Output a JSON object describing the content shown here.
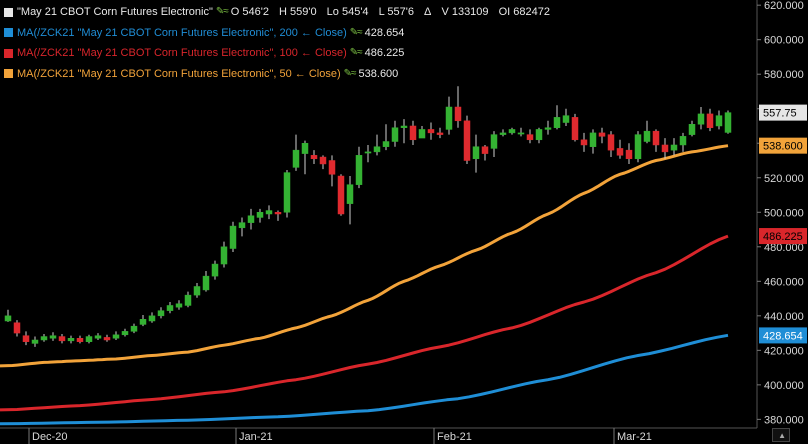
{
  "legend": {
    "main": {
      "title": "\"May 21 CBOT Corn Futures Electronic\"",
      "open": "O 546'2",
      "high": "H 559'0",
      "low": "Lo 545'4",
      "last": "L 557'6",
      "delta": "Δ",
      "volume": "V 133109",
      "oi": "OI 682472",
      "color": "#e6e6e6"
    },
    "ma200": {
      "label": "MA(/ZCK21 \"May 21 CBOT Corn Futures Electronic\", 200 ← Close)",
      "value": "428.654",
      "color": "#1f8ed6"
    },
    "ma100": {
      "label": "MA(/ZCK21 \"May 21 CBOT Corn Futures Electronic\", 100 ← Close)",
      "value": "486.225",
      "color": "#d9262b"
    },
    "ma50": {
      "label": "MA(/ZCK21 \"May 21 CBOT Corn Futures Electronic\", 50 ← Close)",
      "value": "538.600",
      "color": "#f2a33a"
    },
    "pen_icon": "pencil-icon"
  },
  "colors": {
    "up": "#34b233",
    "down": "#e02a2f",
    "background": "#000000",
    "axis_text": "#d8d8d8"
  },
  "chart_data": {
    "type": "candlestick",
    "ylim": [
      375,
      623
    ],
    "y_ticks": [
      "380.000",
      "400.000",
      "420.000",
      "440.000",
      "460.000",
      "480.000",
      "500.000",
      "520.000",
      "540.000",
      "560.000",
      "580.000",
      "600.000",
      "620.000"
    ],
    "y_tick_values": [
      380,
      400,
      420,
      440,
      460,
      480,
      500,
      520,
      540,
      560,
      580,
      600,
      620
    ],
    "x_labels": [
      {
        "label": "Dec-20",
        "index": 3
      },
      {
        "label": "Jan-21",
        "index": 26
      },
      {
        "label": "Feb-21",
        "index": 48
      },
      {
        "label": "Mar-21",
        "index": 68
      }
    ],
    "last_price_badges": [
      {
        "label": "557.75",
        "value": 557.75,
        "bg": "#e6e6e6",
        "fg": "#000000"
      },
      {
        "label": "538.600",
        "value": 538.6,
        "bg": "#f2a33a",
        "fg": "#000000"
      },
      {
        "label": "486.225",
        "value": 486.225,
        "bg": "#d9262b",
        "fg": "#000000"
      },
      {
        "label": "428.654",
        "value": 428.654,
        "bg": "#1f8ed6",
        "fg": "#ffffff"
      }
    ],
    "candles": [
      [
        437.0,
        440.0,
        443.5,
        436.5
      ],
      [
        436.0,
        430.0,
        437.5,
        428.0
      ],
      [
        428.5,
        425.0,
        431.0,
        423.0
      ],
      [
        424.0,
        426.0,
        428.0,
        422.0
      ],
      [
        426.0,
        428.0,
        429.5,
        425.0
      ],
      [
        427.0,
        428.5,
        430.5,
        425.5
      ],
      [
        428.0,
        425.5,
        429.5,
        424.0
      ],
      [
        425.5,
        427.0,
        428.5,
        424.0
      ],
      [
        427.0,
        425.0,
        428.5,
        424.0
      ],
      [
        425.0,
        428.0,
        429.0,
        424.0
      ],
      [
        427.0,
        428.5,
        430.0,
        426.0
      ],
      [
        427.5,
        426.0,
        429.0,
        425.0
      ],
      [
        427.0,
        429.0,
        431.0,
        426.0
      ],
      [
        429.0,
        431.0,
        432.5,
        428.0
      ],
      [
        431.0,
        434.0,
        435.5,
        430.0
      ],
      [
        435.0,
        438.0,
        440.5,
        434.0
      ],
      [
        437.0,
        440.0,
        442.0,
        436.0
      ],
      [
        440.0,
        443.0,
        445.0,
        438.5
      ],
      [
        443.0,
        446.0,
        448.0,
        441.5
      ],
      [
        445.0,
        447.0,
        449.0,
        443.5
      ],
      [
        446.0,
        452.0,
        454.0,
        445.0
      ],
      [
        452.0,
        457.0,
        459.0,
        450.5
      ],
      [
        455.0,
        463.0,
        466.0,
        454.0
      ],
      [
        463.0,
        470.0,
        472.0,
        461.0
      ],
      [
        470.0,
        480.0,
        483.0,
        468.0
      ],
      [
        479.0,
        492.0,
        494.5,
        477.0
      ],
      [
        491.0,
        494.0,
        497.0,
        486.0
      ],
      [
        494.0,
        498.0,
        502.0,
        490.0
      ],
      [
        497.0,
        500.0,
        502.0,
        494.0
      ],
      [
        499.0,
        501.0,
        504.0,
        496.0
      ],
      [
        500.0,
        499.0,
        501.0,
        495.0
      ],
      [
        500.0,
        523.0,
        524.5,
        497.0
      ],
      [
        526.0,
        536.0,
        545.0,
        524.0
      ],
      [
        534.0,
        540.0,
        541.5,
        522.0
      ],
      [
        533.0,
        531.0,
        536.0,
        528.0
      ],
      [
        532.0,
        528.0,
        533.0,
        525.0
      ],
      [
        530.0,
        522.0,
        533.0,
        515.0
      ],
      [
        521.0,
        499.0,
        522.0,
        498.0
      ],
      [
        505.0,
        516.0,
        521.0,
        493.0
      ],
      [
        516.0,
        533.0,
        538.0,
        514.0
      ],
      [
        535.0,
        535.0,
        539.0,
        529.0
      ],
      [
        535.0,
        538.0,
        545.0,
        533.0
      ],
      [
        538.0,
        541.0,
        551.0,
        536.0
      ],
      [
        541.0,
        549.0,
        553.0,
        538.0
      ],
      [
        549.0,
        550.0,
        554.0,
        540.0
      ],
      [
        550.0,
        542.0,
        553.0,
        539.0
      ],
      [
        543.0,
        548.0,
        550.0,
        545.0
      ],
      [
        548.0,
        546.0,
        552.0,
        542.0
      ],
      [
        546.0,
        545.0,
        549.0,
        543.0
      ],
      [
        548.0,
        561.0,
        567.0,
        545.0
      ],
      [
        561.0,
        553.0,
        573.0,
        549.0
      ],
      [
        553.0,
        530.0,
        556.0,
        528.0
      ],
      [
        531.0,
        538.0,
        545.0,
        523.0
      ],
      [
        538.0,
        534.0,
        539.0,
        530.0
      ],
      [
        537.0,
        545.0,
        547.0,
        532.0
      ],
      [
        545.0,
        546.0,
        548.0,
        544.0
      ],
      [
        546.0,
        548.0,
        549.0,
        545.0
      ],
      [
        546.0,
        546.0,
        549.0,
        544.0
      ],
      [
        545.0,
        542.0,
        548.0,
        540.0
      ],
      [
        542.0,
        548.0,
        549.0,
        540.0
      ],
      [
        548.0,
        549.0,
        553.0,
        545.0
      ],
      [
        549.0,
        555.0,
        562.0,
        548.0
      ],
      [
        552.0,
        556.0,
        560.0,
        550.0
      ],
      [
        555.0,
        542.0,
        557.0,
        541.0
      ],
      [
        542.0,
        539.0,
        546.0,
        535.0
      ],
      [
        538.0,
        546.0,
        548.0,
        534.0
      ],
      [
        546.0,
        544.0,
        549.0,
        540.0
      ],
      [
        545.0,
        536.0,
        547.0,
        532.0
      ],
      [
        537.0,
        533.0,
        542.0,
        531.0
      ],
      [
        536.0,
        531.0,
        540.0,
        528.0
      ],
      [
        531.0,
        545.0,
        547.0,
        529.0
      ],
      [
        541.0,
        547.0,
        553.0,
        540.0
      ],
      [
        547.0,
        539.0,
        548.0,
        535.0
      ],
      [
        539.0,
        535.0,
        543.0,
        531.0
      ],
      [
        536.0,
        539.0,
        543.0,
        533.0
      ],
      [
        539.0,
        544.0,
        546.0,
        535.0
      ],
      [
        545.0,
        551.0,
        553.0,
        544.0
      ],
      [
        551.0,
        557.0,
        561.0,
        548.0
      ],
      [
        557.0,
        549.0,
        560.0,
        547.0
      ],
      [
        550.0,
        556.0,
        559.0,
        548.0
      ],
      [
        546.25,
        557.75,
        559.0,
        545.5
      ]
    ],
    "series": [
      {
        "name": "MA 50",
        "color": "#f2a33a",
        "anchors": [
          [
            0,
            411
          ],
          [
            4,
            413
          ],
          [
            8,
            414
          ],
          [
            12,
            415
          ],
          [
            16,
            417
          ],
          [
            20,
            419
          ],
          [
            24,
            423
          ],
          [
            28,
            427
          ],
          [
            32,
            433
          ],
          [
            36,
            440
          ],
          [
            40,
            449
          ],
          [
            44,
            460
          ],
          [
            48,
            469
          ],
          [
            52,
            478
          ],
          [
            56,
            488
          ],
          [
            60,
            499
          ],
          [
            64,
            511
          ],
          [
            68,
            522
          ],
          [
            72,
            530
          ],
          [
            76,
            535
          ],
          [
            80,
            538.6
          ]
        ]
      },
      {
        "name": "MA 100",
        "color": "#d9262b",
        "anchors": [
          [
            0,
            385.5
          ],
          [
            8,
            388
          ],
          [
            16,
            391.5
          ],
          [
            24,
            396
          ],
          [
            32,
            403
          ],
          [
            40,
            412
          ],
          [
            48,
            422
          ],
          [
            56,
            433
          ],
          [
            64,
            448
          ],
          [
            72,
            465
          ],
          [
            80,
            486.2
          ]
        ]
      },
      {
        "name": "MA 200",
        "color": "#1f8ed6",
        "anchors": [
          [
            0,
            377.5
          ],
          [
            10,
            378.3
          ],
          [
            20,
            379.5
          ],
          [
            30,
            381.5
          ],
          [
            40,
            385
          ],
          [
            50,
            392
          ],
          [
            60,
            403
          ],
          [
            70,
            417
          ],
          [
            80,
            428.7
          ]
        ]
      }
    ]
  }
}
